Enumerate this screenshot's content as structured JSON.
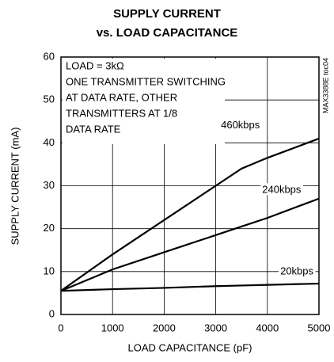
{
  "chart_data": {
    "type": "line",
    "title": [
      "SUPPLY CURRENT",
      "vs. LOAD CAPACITANCE"
    ],
    "xlabel": "LOAD CAPACITANCE (pF)",
    "ylabel": "SUPPLY CURRENT (mA)",
    "annotations": [
      "LOAD = 3kΩ",
      "ONE TRANSMITTER SWITCHING",
      "AT DATA RATE, OTHER",
      "TRANSMITTERS AT 1/8",
      "DATA RATE"
    ],
    "side_note": "MAX3388E toc04",
    "x": [
      0,
      1000,
      2000,
      3000,
      3500,
      4000,
      5000
    ],
    "series": [
      {
        "name": "460kbps",
        "color": "#000000",
        "values": [
          5.5,
          14,
          22,
          30,
          34,
          36.5,
          41
        ]
      },
      {
        "name": "240kbps",
        "color": "#000000",
        "values": [
          5.5,
          10.5,
          14.5,
          18.5,
          20.5,
          22.5,
          27
        ]
      },
      {
        "name": "20kbps",
        "color": "#000000",
        "values": [
          5.5,
          5.9,
          6.2,
          6.6,
          6.75,
          6.9,
          7.2
        ]
      }
    ],
    "xlim": [
      0,
      5000
    ],
    "xticks": [
      0,
      1000,
      2000,
      3000,
      4000,
      5000
    ],
    "ylim": [
      0,
      60
    ],
    "yticks": [
      0,
      10,
      20,
      30,
      40,
      50,
      60
    ],
    "grid": true
  }
}
